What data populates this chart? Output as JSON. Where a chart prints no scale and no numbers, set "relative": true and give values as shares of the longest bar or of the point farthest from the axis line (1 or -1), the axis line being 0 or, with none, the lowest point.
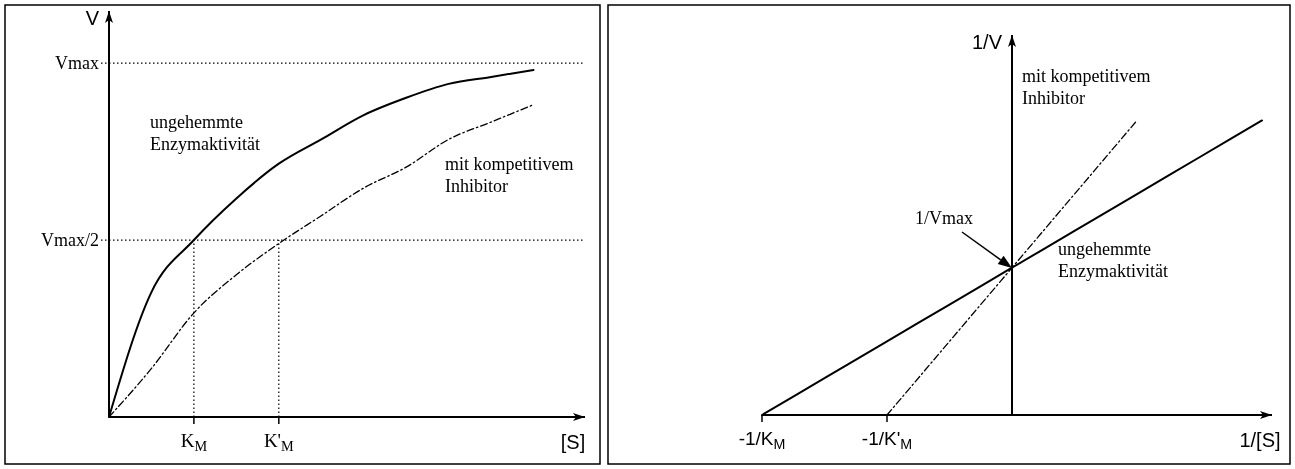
{
  "chart_data": [
    {
      "type": "line",
      "xlabel": "[S]",
      "ylabel": "V",
      "relative": true,
      "categories": [
        null,
        null,
        "K$_{M}$",
        null,
        "K'$_{M}$",
        null,
        null,
        null,
        null,
        null,
        null,
        null
      ],
      "ref_lines": [
        {
          "axis": "y",
          "value": 1.02,
          "label": "Vmax",
          "line_style": "dotted"
        },
        {
          "axis": "y",
          "value": 0.51,
          "label": "Vmax/2",
          "line_style": "dotted"
        },
        {
          "axis": "x",
          "value": "K$_{M}$",
          "line_style": "dotted"
        },
        {
          "axis": "x",
          "value": "K'$_{M}$",
          "line_style": "dotted"
        }
      ],
      "series": [
        {
          "name": "ungehemmte Enzymaktivität",
          "color": "#000000",
          "line_style": "solid",
          "values": [
            0,
            0.36,
            0.51,
            0.63,
            0.73,
            0.8,
            0.87,
            0.92,
            0.96,
            0.98,
            1,
            null
          ]
        },
        {
          "name": "mit kompetitivem Inhibitor",
          "color": "#000000",
          "line_style": "dashed",
          "values": [
            0,
            0.14,
            0.3,
            0.41,
            0.5,
            0.58,
            0.66,
            0.72,
            0.8,
            0.85,
            0.9,
            null
          ]
        }
      ]
    },
    {
      "type": "line",
      "xlabel": "1/[S]",
      "ylabel": "1/V",
      "relative": true,
      "categories": [
        "-1/K$_{M}$",
        null,
        "-1/K'$_{M}$",
        null,
        null,
        null,
        null,
        null,
        null
      ],
      "annotations": [
        "1/Vmax"
      ],
      "series": [
        {
          "name": "ungehemmte Enzymaktivität",
          "color": "#000000",
          "line_style": "solid",
          "values": [
            0,
            0.125,
            0.25,
            0.375,
            0.5,
            0.625,
            0.75,
            0.875,
            1
          ]
        },
        {
          "name": "mit kompetitivem Inhibitor",
          "color": "#000000",
          "line_style": "dashed",
          "values": [
            null,
            null,
            0,
            0.25,
            0.5,
            0.75,
            1,
            null,
            null
          ]
        }
      ]
    }
  ]
}
